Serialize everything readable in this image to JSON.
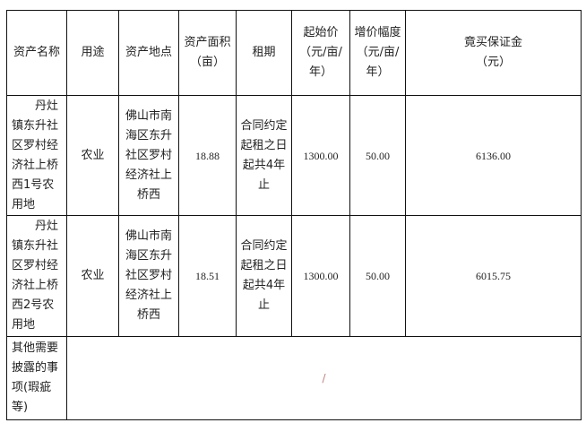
{
  "headers": {
    "name": "资产名称",
    "use": "用途",
    "location": "资产地点",
    "area": "资产面积（亩）",
    "term": "租期",
    "start_price": "起始价（元/亩/年）",
    "increment": "增价幅度（元/亩/年）",
    "deposit": "竟买保证金（元）"
  },
  "rows": [
    {
      "name": "丹灶镇东升社区罗村经济社上桥西1号农用地",
      "use": "农业",
      "location": "佛山市南海区东升社区罗村经济社上桥西",
      "area": "18.88",
      "term": "合同约定起租之日起共4年止",
      "start_price": "1300.00",
      "increment": "50.00",
      "deposit": "6136.00"
    },
    {
      "name": "丹灶镇东升社区罗村经济社上桥西2号农用地",
      "use": "农业",
      "location": "佛山市南海区东升社区罗村经济社上桥西",
      "area": "18.51",
      "term": "合同约定起租之日起共4年止",
      "start_price": "1300.00",
      "increment": "50.00",
      "deposit": "6015.75"
    }
  ],
  "other": {
    "label": "其他需要披露的事项(瑕疵等)",
    "value": "/"
  }
}
